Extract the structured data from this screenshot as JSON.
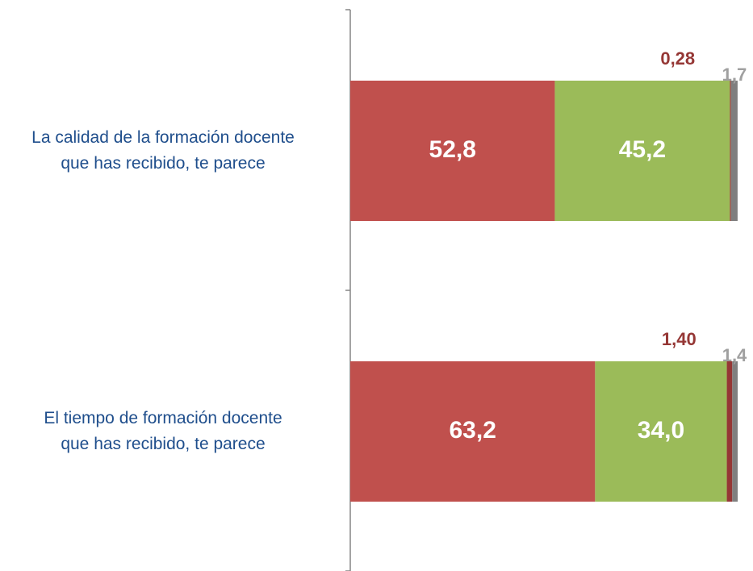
{
  "chart_data": {
    "type": "stacked-bar-horizontal",
    "categories": [
      "La calidad de la formación docente que has recibido, te parece",
      "El tiempo de formación docente que has recibido, te parece"
    ],
    "series": [
      {
        "color": "#c0504d",
        "values": [
          52.8,
          63.2
        ],
        "value_labels": [
          "52,8",
          "63,2"
        ]
      },
      {
        "color": "#9bbb59",
        "values": [
          45.2,
          34.0
        ],
        "value_labels": [
          "45,2",
          "34,0"
        ]
      },
      {
        "color": "#953735",
        "values": [
          0.28,
          1.4
        ],
        "value_labels": [
          "0,28",
          "1,40"
        ]
      },
      {
        "color": "#7f7f7f",
        "values": [
          1.7,
          1.4
        ],
        "value_labels": [
          "1,7",
          "1,4"
        ]
      }
    ],
    "xlim": [
      0,
      100
    ]
  }
}
